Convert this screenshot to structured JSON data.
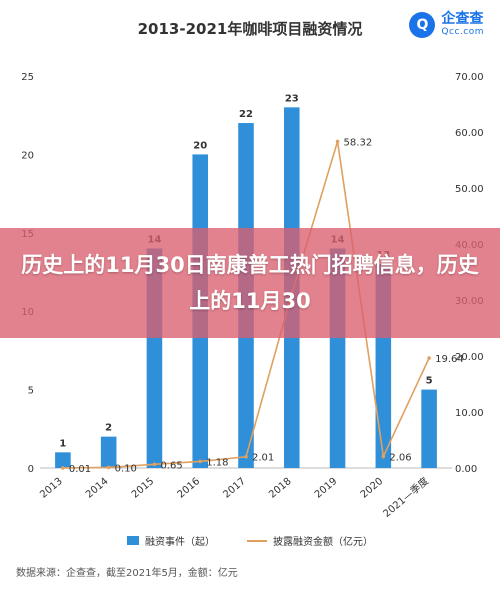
{
  "chart_data": {
    "type": "bar",
    "title": "2013-2021年咖啡项目融资情况",
    "categories": [
      "2013",
      "2014",
      "2015",
      "2016",
      "2017",
      "2018",
      "2019",
      "2020",
      "2021—季度"
    ],
    "series": [
      {
        "name": "融资事件（起）",
        "type": "bar",
        "axis": "left",
        "color": "#2f8fd8",
        "values": [
          1,
          2,
          14,
          20,
          22,
          23,
          14,
          13,
          5
        ]
      },
      {
        "name": "披露融资金额（亿元）",
        "type": "line",
        "axis": "right",
        "color": "#e0a060",
        "values": [
          0.01,
          0.1,
          0.65,
          1.18,
          2.01,
          31.12,
          58.32,
          2.06,
          19.64
        ]
      }
    ],
    "bar_labels": [
      "1",
      "2",
      "14",
      "20",
      "22",
      "23",
      "14",
      "13",
      "5"
    ],
    "line_labels": [
      "0.01",
      "0.10",
      "0.65",
      "1.18",
      "2.01",
      "",
      "58.32",
      "2.06",
      "19.64"
    ],
    "ylim_left": [
      0,
      25
    ],
    "yticks_left": [
      "0",
      "5",
      "10",
      "15",
      "20",
      "25"
    ],
    "ylim_right": [
      0,
      70
    ],
    "yticks_right": [
      "0.00",
      "10.00",
      "20.00",
      "30.00",
      "40.00",
      "50.00",
      "60.00",
      "70.00"
    ],
    "grid": false,
    "legend_position": "bottom"
  },
  "logo": {
    "name": "企查查",
    "domain": "Qcc.com",
    "mark": "Q"
  },
  "banner": {
    "text": "历史上的11月30日南康普工热门招聘信息，历史上的11月30"
  },
  "source": "数据来源：企查查，截至2021年5月，金额：亿元"
}
